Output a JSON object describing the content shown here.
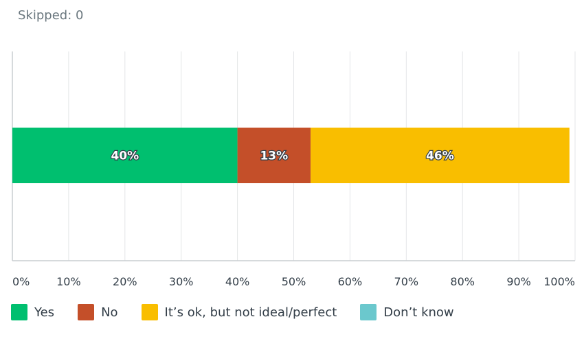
{
  "skipped_text": "Skipped: 0",
  "chart_data": {
    "type": "bar",
    "orientation": "horizontal",
    "stacked": true,
    "categories": [
      ""
    ],
    "series": [
      {
        "name": "Yes",
        "values": [
          40
        ],
        "label": "40%",
        "color": "#00bf6f"
      },
      {
        "name": "No",
        "values": [
          13
        ],
        "label": "13%",
        "color": "#c44f29"
      },
      {
        "name": "It’s ok, but not ideal/perfect",
        "values": [
          46
        ],
        "label": "46%",
        "color": "#f9be00"
      },
      {
        "name": "Don’t know",
        "values": [
          0
        ],
        "label": "",
        "color": "#6bc8cd"
      }
    ],
    "x_ticks": [
      "0%",
      "10%",
      "20%",
      "30%",
      "40%",
      "50%",
      "60%",
      "70%",
      "80%",
      "90%",
      "100%"
    ],
    "xlim": [
      0,
      100
    ],
    "grid": true,
    "legend_position": "bottom"
  }
}
